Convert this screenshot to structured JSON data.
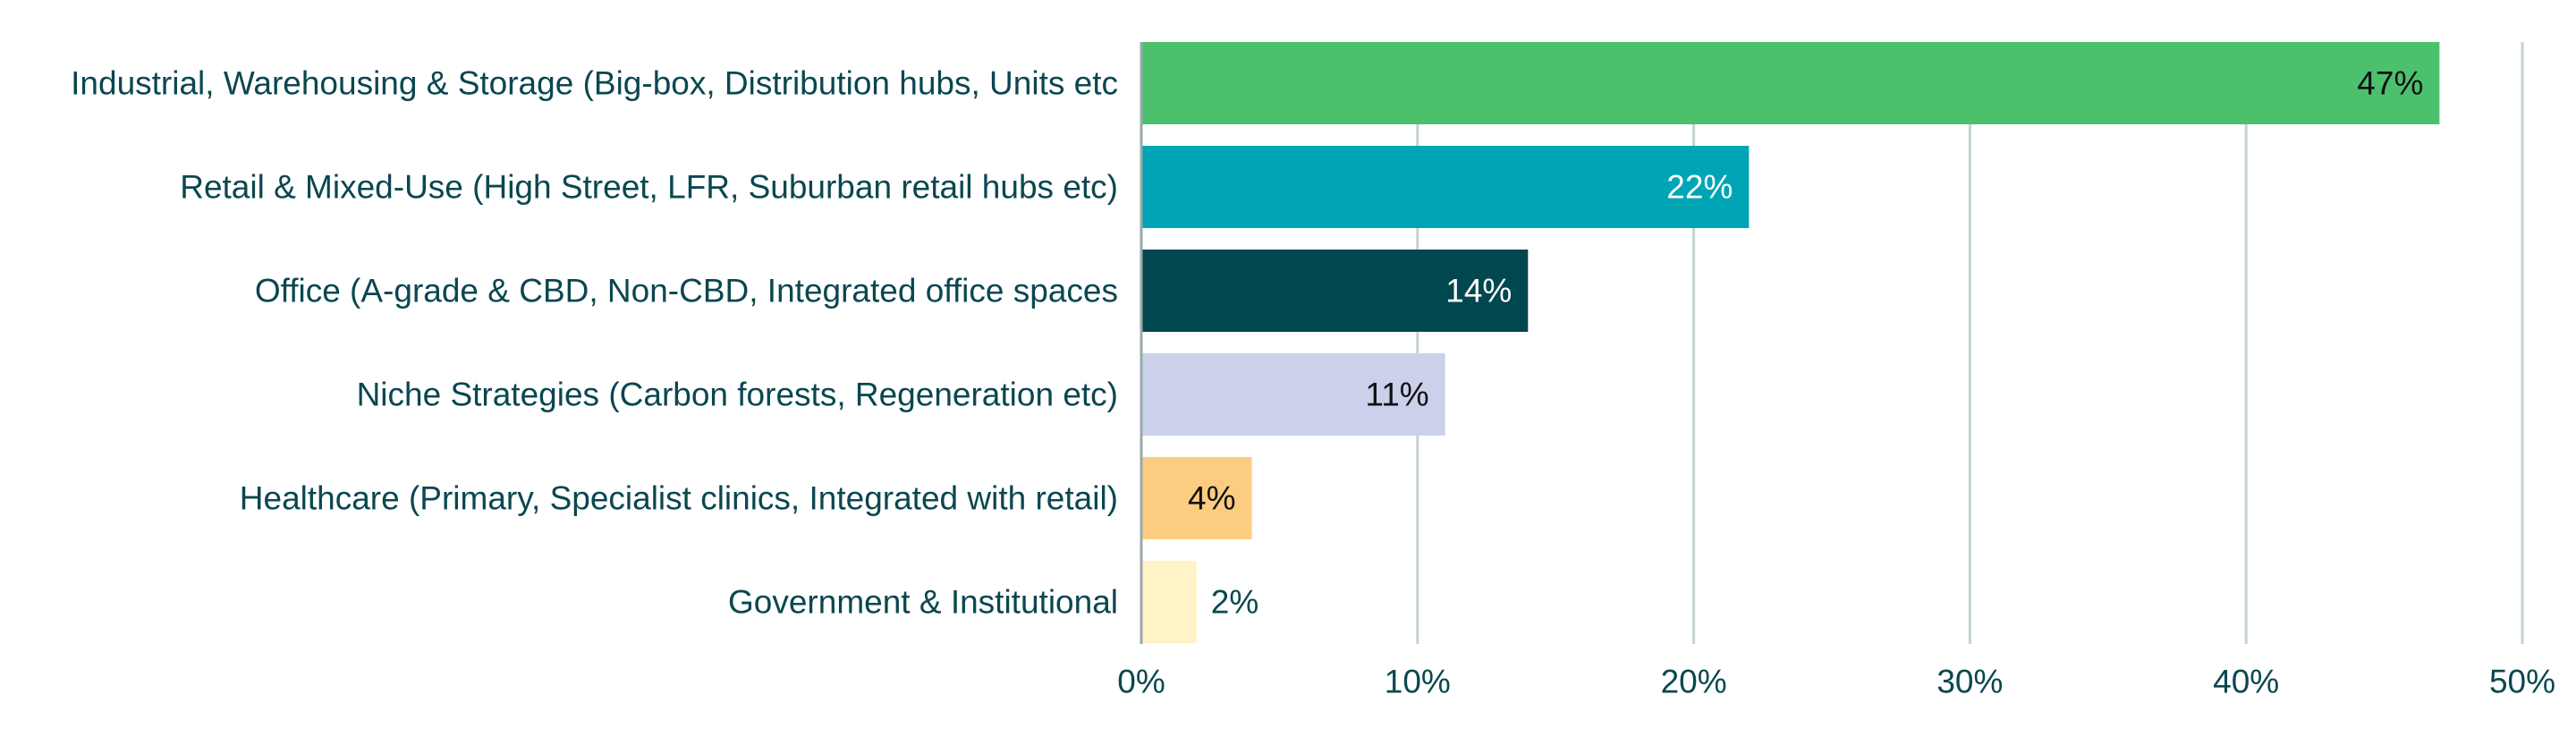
{
  "chart_data": {
    "type": "bar",
    "orientation": "horizontal",
    "categories": [
      "Industrial, Warehousing & Storage (Big-box, Distribution hubs, Units etc",
      "Retail & Mixed-Use (High Street, LFR, Suburban retail hubs etc)",
      "Office (A-grade & CBD, Non-CBD, Integrated office spaces",
      "Niche Strategies (Carbon forests, Regeneration etc)",
      "Healthcare (Primary, Specialist clinics, Integrated with retail)",
      "Government & Institutional"
    ],
    "values": [
      47,
      22,
      14,
      11,
      4,
      2
    ],
    "value_labels": [
      "47%",
      "22%",
      "14%",
      "11%",
      "4%",
      "2%"
    ],
    "bar_colors": [
      "#4bc16e",
      "#00a5b5",
      "#00474f",
      "#cbd1ea",
      "#fccd80",
      "#fff3c7"
    ],
    "value_label_colors": [
      "#111111",
      "#ffffff",
      "#ffffff",
      "#111111",
      "#111111",
      "#0a4750"
    ],
    "value_label_inside": [
      true,
      true,
      true,
      true,
      true,
      false
    ],
    "xlim": [
      0,
      50
    ],
    "xticks": [
      0,
      10,
      20,
      30,
      40,
      50
    ],
    "xtick_labels": [
      "0%",
      "10%",
      "20%",
      "30%",
      "40%",
      "50%"
    ],
    "grid": "vertical",
    "grid_color": "#c4d2d3",
    "text_color": "#0a4750",
    "legend": "none",
    "title": "",
    "xlabel": "",
    "ylabel": ""
  }
}
